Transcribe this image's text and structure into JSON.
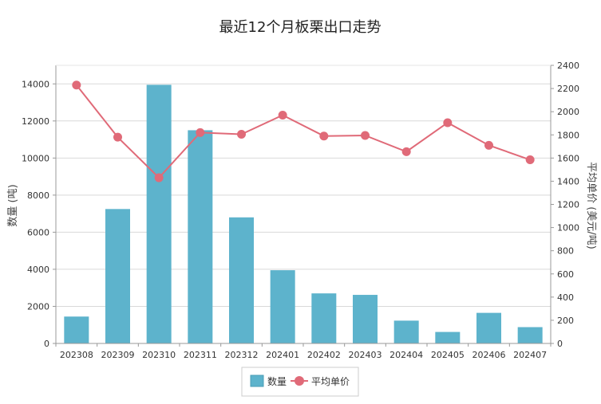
{
  "chart_data": {
    "type": "bar+line",
    "title": "最近12个月板栗出口走势",
    "categories": [
      "202308",
      "202309",
      "202310",
      "202311",
      "202312",
      "202401",
      "202402",
      "202403",
      "202404",
      "202405",
      "202406",
      "202407"
    ],
    "series": [
      {
        "name": "数量",
        "type": "bar",
        "axis": "left",
        "color": "#5db3cc",
        "values": [
          1450,
          7250,
          13950,
          11500,
          6800,
          3950,
          2700,
          2620,
          1230,
          620,
          1650,
          880
        ]
      },
      {
        "name": "平均单价",
        "type": "line",
        "axis": "right",
        "color": "#e06a78",
        "values": [
          2230,
          1780,
          1430,
          1820,
          1805,
          1970,
          1790,
          1795,
          1655,
          1905,
          1710,
          1585
        ]
      }
    ],
    "ylabel": "数量 (吨)",
    "y2label": "平均单价 (美元/吨)",
    "ylim": [
      0,
      15000
    ],
    "yticks": [
      0,
      2000,
      4000,
      6000,
      8000,
      10000,
      12000,
      14000
    ],
    "y2lim": [
      0,
      2400
    ],
    "y2ticks": [
      0,
      200,
      400,
      600,
      800,
      1000,
      1200,
      1400,
      1600,
      1800,
      2000,
      2200,
      2400
    ],
    "grid": true,
    "legend_position": "bottom-center"
  }
}
